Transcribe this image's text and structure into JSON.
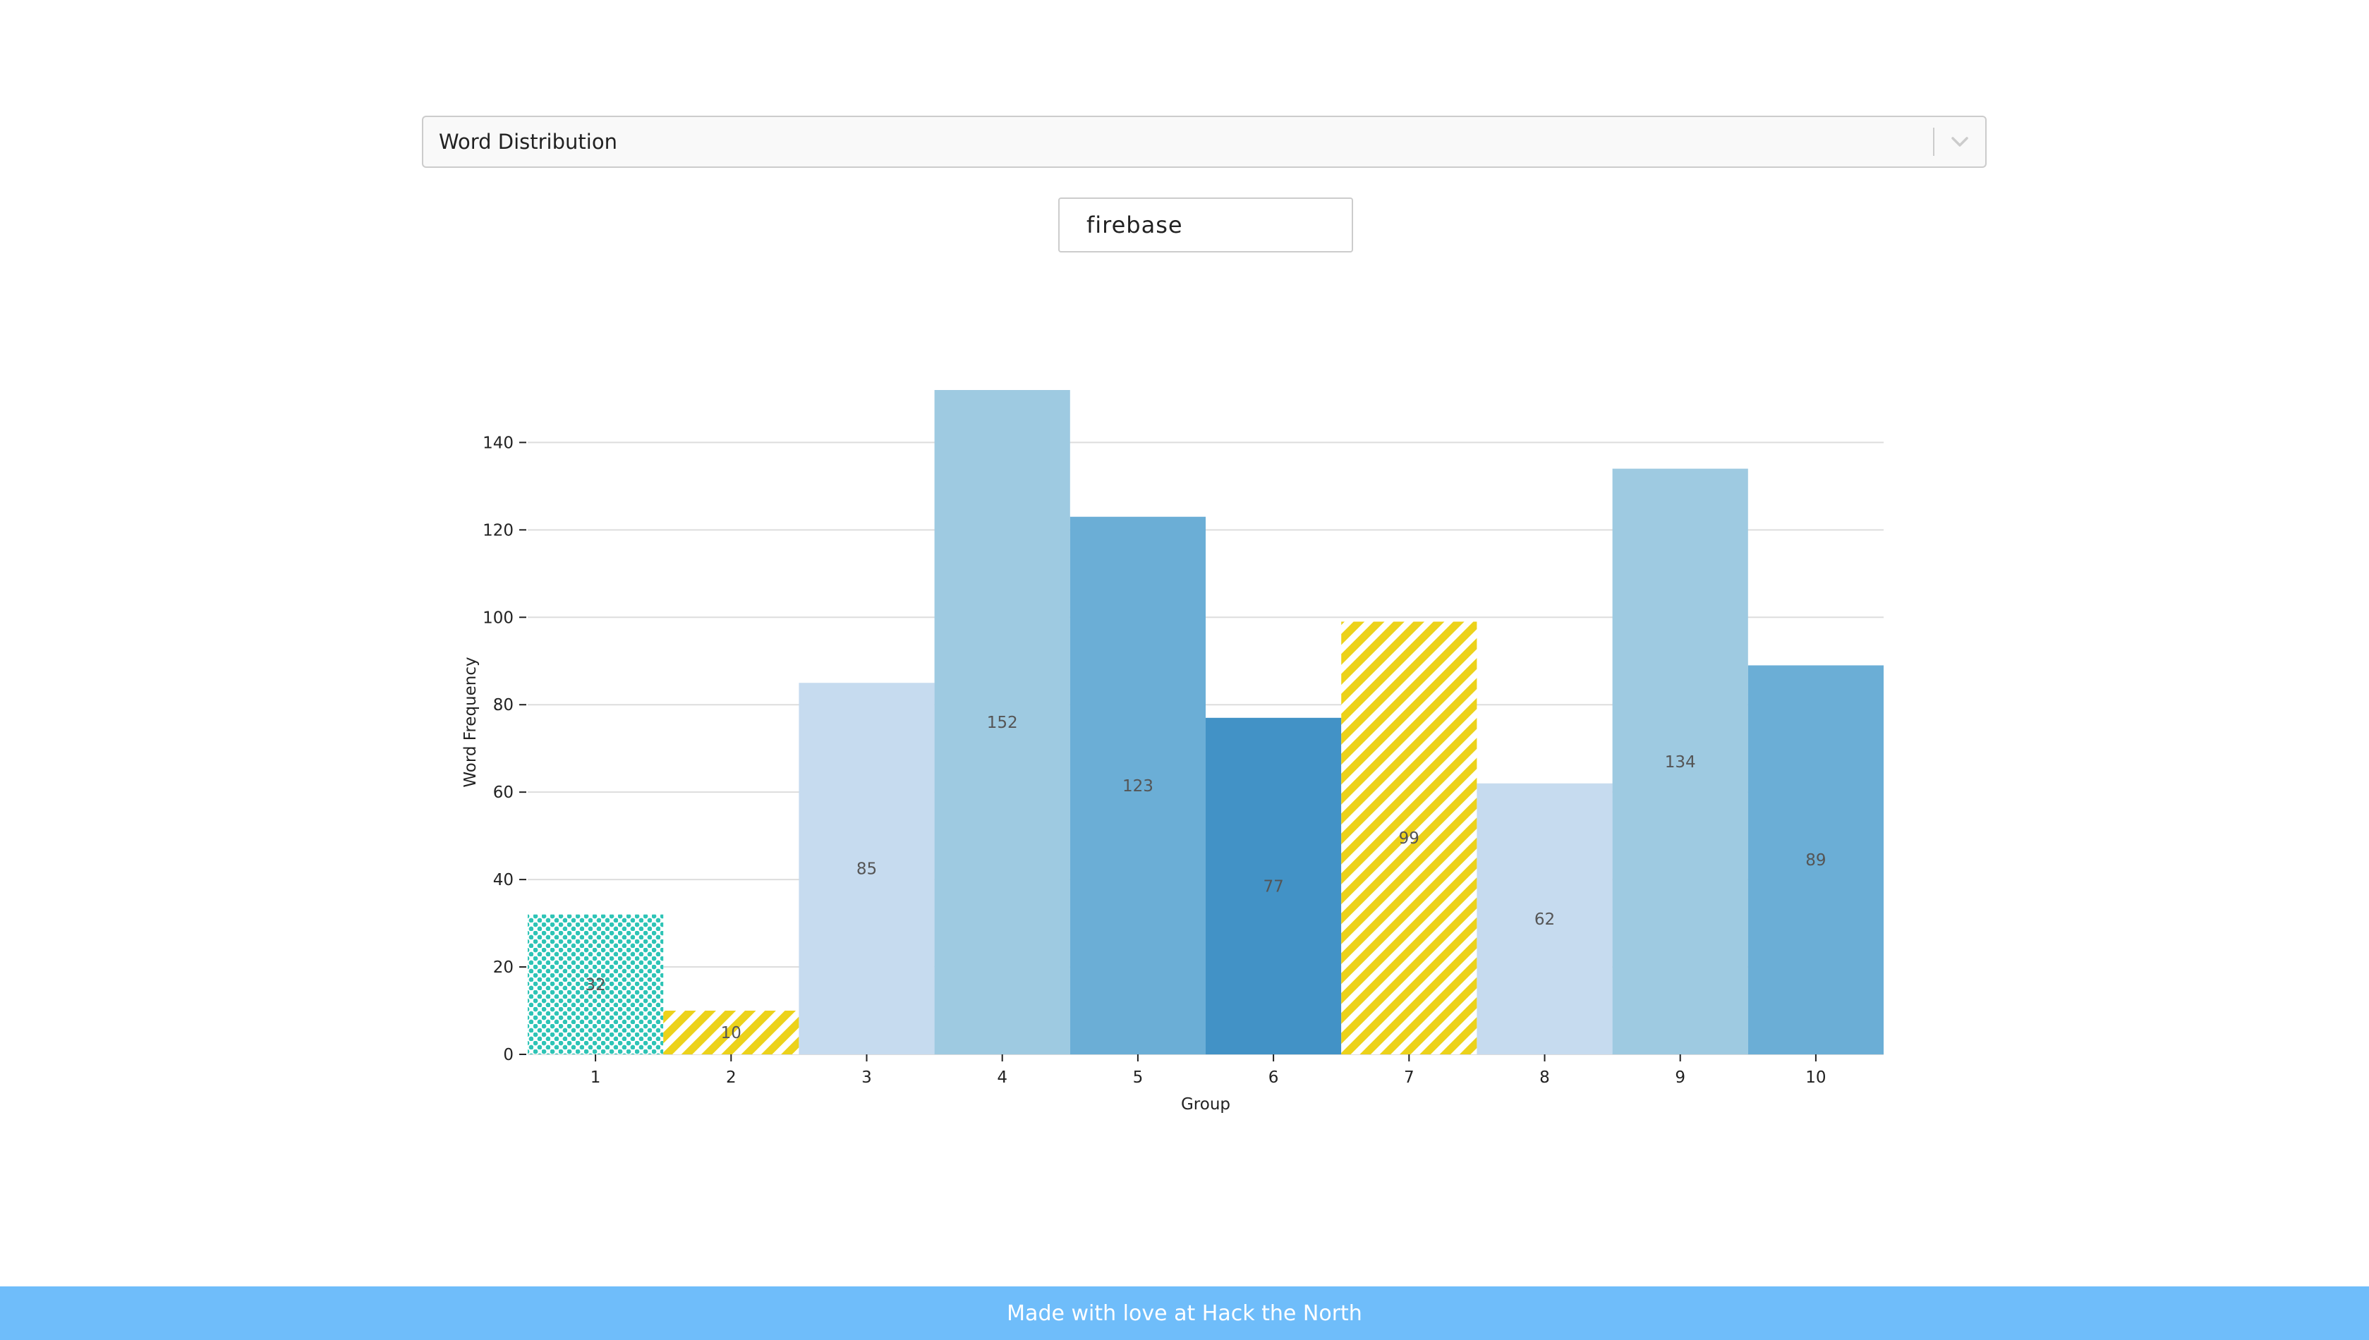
{
  "selector": {
    "selected": "Word Distribution",
    "arrow_icon": "chevron-down-icon"
  },
  "search": {
    "value": "firebase"
  },
  "footer": {
    "text": "Made with love at Hack the North"
  },
  "colors": {
    "light": "#c6dbef",
    "medium_light": "#9ecae1",
    "medium": "#6baed6",
    "dark": "#4292c6",
    "teal_pattern": "#2ec4b6",
    "yellow_pattern": "#ecd21a",
    "footer": "#6fbdfa",
    "grid": "#dddddd"
  },
  "chart_data": {
    "type": "bar",
    "categories": [
      "1",
      "2",
      "3",
      "4",
      "5",
      "6",
      "7",
      "8",
      "9",
      "10"
    ],
    "values": [
      32,
      10,
      85,
      152,
      123,
      77,
      99,
      62,
      134,
      89
    ],
    "data_labels": [
      "32",
      "10",
      "85",
      "152",
      "123",
      "77",
      "99",
      "62",
      "134",
      "89"
    ],
    "bar_fills": [
      "dots-teal",
      "stripes-yellow",
      "light",
      "medium_light",
      "medium",
      "dark",
      "stripes-yellow",
      "light",
      "medium_light",
      "medium"
    ],
    "title": "",
    "xlabel": "Group",
    "ylabel": "Word Frequency",
    "ylim": [
      0,
      152
    ],
    "yticks": [
      0,
      20,
      40,
      60,
      80,
      100,
      120,
      140
    ],
    "grid": true,
    "legend": false
  }
}
